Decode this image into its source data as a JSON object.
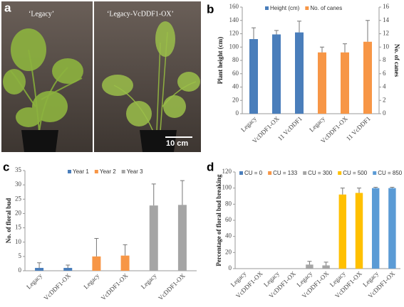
{
  "photo": {
    "panel_label": "a",
    "left_label": "‘Legacy’",
    "right_label": "‘Legacy-VcDDF1-OX’",
    "scale_label": "10 cm"
  },
  "chart_data": [
    {
      "type": "bar",
      "panel_label": "b",
      "categories": [
        "Legacy",
        "VcDDF1-OX",
        "11 VcDDF1",
        "Legacy",
        "VcDDF1-OX",
        "11 VcDDF1"
      ],
      "series": [
        {
          "name": "Height (cm)",
          "color": "#4a7ebb",
          "values": [
            112,
            119,
            122,
            null,
            null,
            null
          ],
          "errors": [
            17,
            6,
            17,
            null,
            null,
            null
          ]
        },
        {
          "name": "No. of canes",
          "color": "#f79646",
          "axis": "y2",
          "values": [
            null,
            null,
            null,
            9.2,
            9.2,
            10.8
          ],
          "errors": [
            null,
            null,
            null,
            0.8,
            1.3,
            3.2
          ]
        }
      ],
      "ylabel": "Plant height (cm)",
      "y2label": "No. of canes",
      "ylim": [
        0,
        160
      ],
      "yticks": [
        0,
        20,
        40,
        60,
        80,
        100,
        120,
        140,
        160
      ],
      "y2lim": [
        0,
        16
      ],
      "y2ticks": [
        0,
        2,
        4,
        6,
        8,
        10,
        12,
        14,
        16
      ],
      "grid": false,
      "legend": "top"
    },
    {
      "type": "bar",
      "panel_label": "c",
      "categories": [
        "Legacy",
        "VcDDF1-OX",
        "Legacy",
        "VcDDF1-OX",
        "Legacy",
        "VcDDF1-OX"
      ],
      "series": [
        {
          "name": "Year 1",
          "color": "#4a7ebb",
          "values": [
            1,
            1,
            null,
            null,
            null,
            null
          ],
          "errors": [
            1.8,
            1,
            null,
            null,
            null,
            null
          ]
        },
        {
          "name": "Year 2",
          "color": "#f79646",
          "values": [
            null,
            null,
            5,
            5.3,
            null,
            null
          ],
          "errors": [
            null,
            null,
            6.3,
            3.8,
            null,
            null
          ]
        },
        {
          "name": "Year 3",
          "color": "#a5a5a5",
          "values": [
            null,
            null,
            null,
            null,
            22.8,
            23
          ],
          "errors": [
            null,
            null,
            null,
            null,
            7.5,
            8.5
          ]
        }
      ],
      "ylabel": "No. of floral bud",
      "ylim": [
        0,
        35
      ],
      "yticks": [
        0,
        5,
        10,
        15,
        20,
        25,
        30,
        35
      ],
      "grid": false,
      "legend": "top"
    },
    {
      "type": "bar",
      "panel_label": "d",
      "categories": [
        "Legacy",
        "VcDDF1-OX",
        "Legacy",
        "VcDDF1-OX",
        "Legacy",
        "VcDDF1-OX",
        "Legacy",
        "VcDDF1-OX",
        "Legacy",
        "VcDDF1-OX"
      ],
      "series": [
        {
          "name": "CU = 0",
          "color": "#4a7ebb",
          "values": [
            0,
            0,
            null,
            null,
            null,
            null,
            null,
            null,
            null,
            null
          ],
          "errors": [
            null,
            null,
            null,
            null,
            null,
            null,
            null,
            null,
            null,
            null
          ]
        },
        {
          "name": "CU = 133",
          "color": "#f79646",
          "values": [
            null,
            null,
            0,
            0,
            null,
            null,
            null,
            null,
            null,
            null
          ],
          "errors": [
            null,
            null,
            null,
            null,
            null,
            null,
            null,
            null,
            null,
            null
          ]
        },
        {
          "name": "CU = 300",
          "color": "#a5a5a5",
          "values": [
            null,
            null,
            null,
            null,
            5,
            4,
            null,
            null,
            null,
            null
          ],
          "errors": [
            null,
            null,
            null,
            null,
            4,
            4,
            null,
            null,
            null,
            null
          ]
        },
        {
          "name": "CU = 500",
          "color": "#ffc000",
          "values": [
            null,
            null,
            null,
            null,
            null,
            null,
            92,
            94,
            null,
            null
          ],
          "errors": [
            null,
            null,
            null,
            null,
            null,
            null,
            8,
            6,
            null,
            null
          ]
        },
        {
          "name": "CU = 850",
          "color": "#5b9bd5",
          "values": [
            null,
            null,
            null,
            null,
            null,
            null,
            null,
            null,
            100,
            100
          ],
          "errors": [
            null,
            null,
            null,
            null,
            null,
            null,
            null,
            null,
            1,
            1
          ]
        }
      ],
      "ylabel": "Percentage of floral bud breaking",
      "ylim": [
        0,
        120
      ],
      "yticks": [
        0,
        20,
        40,
        60,
        80,
        100,
        120
      ],
      "grid": false,
      "legend": "top"
    }
  ]
}
